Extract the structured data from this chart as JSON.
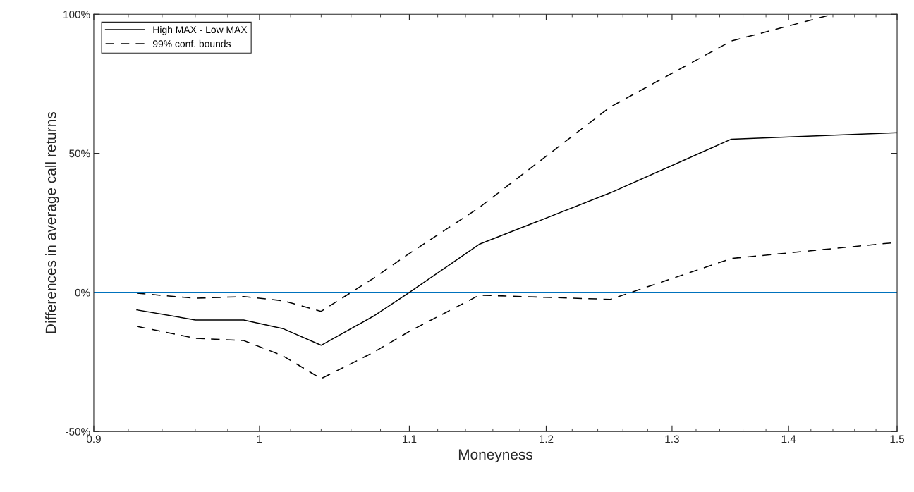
{
  "chart_data": {
    "type": "line",
    "xlabel": "Moneyness",
    "ylabel": "Differences in average call returns",
    "x": [
      0.925,
      0.96,
      0.99,
      1.015,
      1.04,
      1.075,
      1.1,
      1.15,
      1.25,
      1.35,
      1.5
    ],
    "series": [
      {
        "name": "High MAX - Low MAX",
        "color": "#000000",
        "line_style": "solid",
        "values": [
          -6.3,
          -9.9,
          -9.9,
          -13,
          -19,
          -8.6,
          0,
          17.3,
          35.8,
          55.1,
          57.4
        ]
      },
      {
        "name": "99% conf. bounds",
        "color": "#000000",
        "line_style": "dashed",
        "x": [
          0.925,
          0.96,
          0.99,
          1.015,
          1.04,
          1.075,
          1.1,
          1.15,
          1.25,
          1.35,
          1.44
        ],
        "values": [
          -0.3,
          -2.1,
          -1.5,
          -3,
          -6.8,
          5,
          14,
          30.5,
          66.7,
          90.4,
          100
        ]
      },
      {
        "color": "#000000",
        "line_style": "dashed",
        "values": [
          -12.2,
          -16.5,
          -17.3,
          -22.8,
          -31,
          -21.6,
          -14,
          -1,
          -2.5,
          12.2,
          18
        ]
      }
    ],
    "log": "x",
    "xlim": [
      0.9,
      1.5
    ],
    "xticks": [
      0.9,
      1,
      1.1,
      1.2,
      1.3,
      1.4,
      1.5
    ],
    "ylim": [
      -50,
      100
    ],
    "yticks": [
      {
        "value": -50,
        "label": "-50%"
      },
      {
        "value": 0,
        "label": "0%"
      },
      {
        "value": 50,
        "label": "50%"
      },
      {
        "value": 100,
        "label": "100%"
      }
    ],
    "ref_lines": [
      {
        "axis": "y",
        "value": 0,
        "color": "#0072bd",
        "line_style": "solid"
      }
    ],
    "grid": false,
    "legend": "top left",
    "marker": "none"
  }
}
